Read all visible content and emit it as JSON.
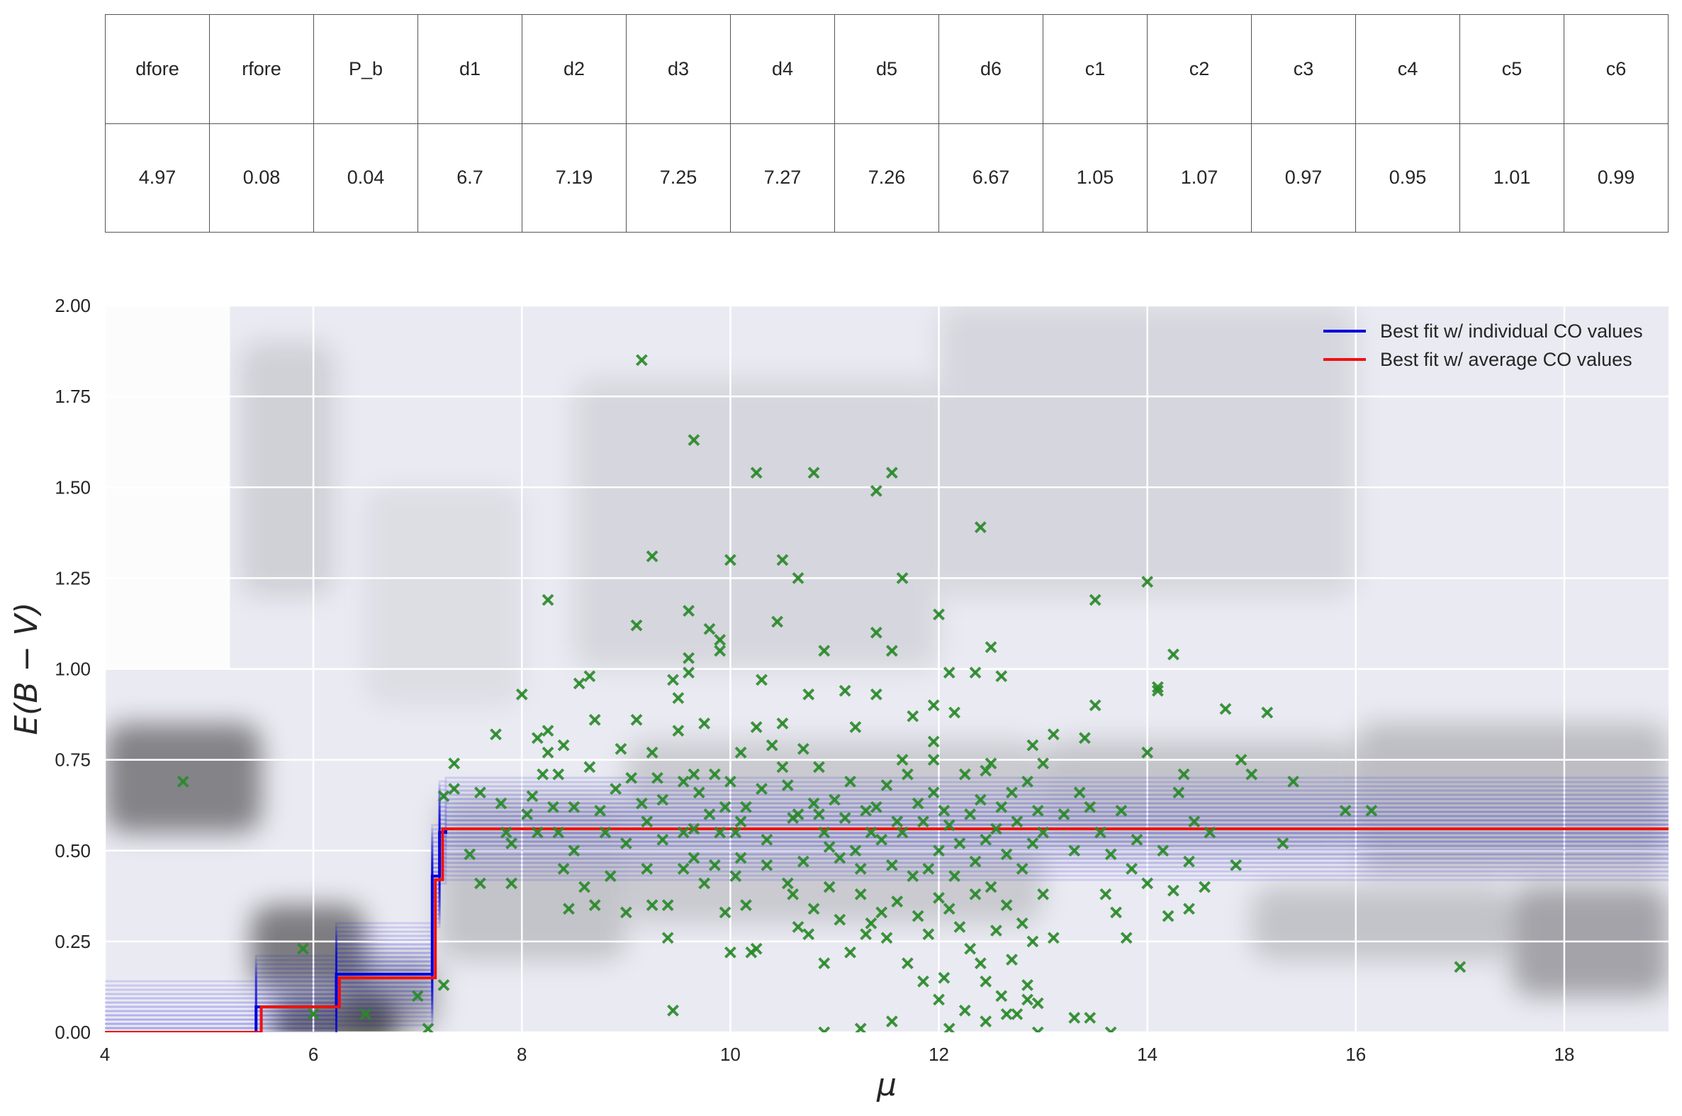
{
  "table": {
    "headers": [
      "dfore",
      "rfore",
      "P_b",
      "d1",
      "d2",
      "d3",
      "d4",
      "d5",
      "d6",
      "c1",
      "c2",
      "c3",
      "c4",
      "c5",
      "c6"
    ],
    "values": [
      "4.97",
      "0.08",
      "0.04",
      "6.7",
      "7.19",
      "7.25",
      "7.27",
      "7.26",
      "6.67",
      "1.05",
      "1.07",
      "0.97",
      "0.95",
      "1.01",
      "0.99"
    ]
  },
  "chart_data": {
    "type": "line",
    "xlabel": "μ",
    "ylabel": "E(B − V)",
    "xlim": [
      4,
      19
    ],
    "ylim": [
      0,
      2
    ],
    "xticks": [
      4,
      6,
      8,
      10,
      12,
      14,
      16,
      18
    ],
    "yticks": [
      "0.00",
      "0.25",
      "0.50",
      "0.75",
      "1.00",
      "1.25",
      "1.50",
      "1.75",
      "2.00"
    ],
    "grid": true,
    "legend_position": "top-right",
    "colors": {
      "individual": "#0000dd",
      "average": "#ee1111",
      "stars": "#2a8a2a",
      "background": "#eaeaf2",
      "grid": "#ffffff"
    },
    "series": [
      {
        "name": "Best fit w/ individual CO values",
        "x": [
          4,
          5.45,
          5.45,
          6.22,
          6.22,
          7.14,
          7.14,
          7.21,
          7.21,
          7.27,
          7.27,
          19
        ],
        "y": [
          0.0,
          0.0,
          0.07,
          0.07,
          0.16,
          0.16,
          0.43,
          0.43,
          0.55,
          0.55,
          0.56,
          0.56
        ]
      },
      {
        "name": "Best fit w/ average CO values",
        "x": [
          4,
          5.5,
          5.5,
          6.25,
          6.25,
          7.17,
          7.17,
          7.24,
          7.24,
          7.28,
          7.28,
          19
        ],
        "y": [
          0.0,
          0.0,
          0.07,
          0.07,
          0.15,
          0.15,
          0.42,
          0.42,
          0.56,
          0.56,
          0.56,
          0.56
        ]
      }
    ],
    "stars": [
      [
        4.75,
        0.69
      ],
      [
        5.9,
        0.23
      ],
      [
        6.0,
        0.05
      ],
      [
        6.5,
        0.05
      ],
      [
        7.0,
        0.1
      ],
      [
        7.1,
        0.01
      ],
      [
        7.25,
        0.13
      ],
      [
        7.25,
        0.65
      ],
      [
        7.35,
        0.74
      ],
      [
        7.35,
        0.67
      ],
      [
        7.5,
        0.49
      ],
      [
        7.6,
        0.66
      ],
      [
        7.6,
        0.41
      ],
      [
        7.75,
        0.82
      ],
      [
        7.8,
        0.63
      ],
      [
        7.85,
        0.55
      ],
      [
        7.9,
        0.52
      ],
      [
        7.9,
        0.41
      ],
      [
        8.0,
        0.93
      ],
      [
        8.05,
        0.6
      ],
      [
        8.1,
        0.65
      ],
      [
        8.15,
        0.81
      ],
      [
        8.15,
        0.55
      ],
      [
        8.2,
        0.71
      ],
      [
        8.25,
        1.19
      ],
      [
        8.25,
        0.83
      ],
      [
        8.25,
        0.77
      ],
      [
        8.3,
        0.62
      ],
      [
        8.35,
        0.55
      ],
      [
        8.35,
        0.71
      ],
      [
        8.4,
        0.79
      ],
      [
        8.4,
        0.45
      ],
      [
        8.45,
        0.34
      ],
      [
        8.5,
        0.62
      ],
      [
        8.5,
        0.5
      ],
      [
        8.55,
        0.96
      ],
      [
        8.6,
        0.4
      ],
      [
        8.65,
        0.73
      ],
      [
        8.65,
        0.98
      ],
      [
        8.7,
        0.86
      ],
      [
        8.7,
        0.35
      ],
      [
        8.75,
        0.61
      ],
      [
        8.8,
        0.55
      ],
      [
        8.85,
        0.43
      ],
      [
        8.9,
        0.67
      ],
      [
        8.95,
        0.78
      ],
      [
        9.0,
        0.33
      ],
      [
        9.0,
        0.52
      ],
      [
        9.05,
        0.7
      ],
      [
        9.1,
        1.12
      ],
      [
        9.1,
        0.86
      ],
      [
        9.15,
        0.63
      ],
      [
        9.2,
        0.45
      ],
      [
        9.2,
        0.58
      ],
      [
        9.25,
        1.31
      ],
      [
        9.25,
        0.77
      ],
      [
        9.25,
        0.35
      ],
      [
        9.3,
        0.7
      ],
      [
        9.35,
        0.53
      ],
      [
        9.35,
        0.64
      ],
      [
        9.4,
        0.26
      ],
      [
        9.4,
        0.35
      ],
      [
        9.45,
        0.06
      ],
      [
        9.45,
        0.97
      ],
      [
        9.5,
        0.92
      ],
      [
        9.5,
        0.83
      ],
      [
        9.55,
        0.69
      ],
      [
        9.55,
        0.55
      ],
      [
        9.55,
        0.45
      ],
      [
        9.6,
        0.99
      ],
      [
        9.6,
        1.03
      ],
      [
        9.6,
        1.16
      ],
      [
        9.65,
        0.71
      ],
      [
        9.65,
        0.56
      ],
      [
        9.65,
        0.48
      ],
      [
        9.7,
        0.66
      ],
      [
        9.75,
        0.85
      ],
      [
        9.75,
        0.41
      ],
      [
        9.8,
        1.11
      ],
      [
        9.8,
        0.6
      ],
      [
        9.85,
        0.46
      ],
      [
        9.85,
        0.71
      ],
      [
        9.9,
        1.08
      ],
      [
        9.9,
        1.05
      ],
      [
        9.9,
        0.55
      ],
      [
        9.95,
        0.62
      ],
      [
        9.95,
        0.33
      ],
      [
        10.0,
        0.22
      ],
      [
        10.0,
        0.69
      ],
      [
        10.05,
        0.55
      ],
      [
        10.05,
        0.43
      ],
      [
        10.1,
        0.58
      ],
      [
        10.1,
        0.48
      ],
      [
        10.1,
        0.77
      ],
      [
        10.15,
        0.62
      ],
      [
        10.15,
        0.35
      ],
      [
        10.2,
        0.22
      ],
      [
        10.25,
        0.84
      ],
      [
        10.25,
        0.23
      ],
      [
        10.3,
        0.97
      ],
      [
        10.3,
        0.67
      ],
      [
        10.35,
        0.46
      ],
      [
        10.35,
        0.53
      ],
      [
        10.4,
        0.79
      ],
      [
        10.45,
        1.13
      ],
      [
        10.5,
        1.3
      ],
      [
        10.5,
        0.85
      ],
      [
        10.5,
        0.73
      ],
      [
        10.55,
        0.68
      ],
      [
        10.55,
        0.41
      ],
      [
        10.6,
        0.59
      ],
      [
        10.6,
        0.38
      ],
      [
        10.65,
        0.6
      ],
      [
        10.65,
        0.29
      ],
      [
        10.7,
        0.78
      ],
      [
        10.7,
        0.47
      ],
      [
        10.75,
        0.93
      ],
      [
        10.75,
        0.27
      ],
      [
        10.8,
        1.54
      ],
      [
        10.8,
        0.63
      ],
      [
        10.8,
        0.34
      ],
      [
        10.85,
        0.73
      ],
      [
        10.85,
        0.6
      ],
      [
        10.9,
        0.55
      ],
      [
        10.9,
        0.19
      ],
      [
        10.95,
        0.51
      ],
      [
        10.95,
        0.4
      ],
      [
        11.0,
        0.64
      ],
      [
        11.05,
        0.48
      ],
      [
        11.05,
        0.31
      ],
      [
        11.1,
        0.94
      ],
      [
        11.1,
        0.59
      ],
      [
        11.15,
        0.69
      ],
      [
        11.15,
        0.22
      ],
      [
        11.2,
        0.84
      ],
      [
        11.2,
        0.5
      ],
      [
        11.25,
        0.45
      ],
      [
        11.25,
        0.38
      ],
      [
        11.3,
        0.27
      ],
      [
        11.3,
        0.61
      ],
      [
        11.35,
        0.55
      ],
      [
        11.35,
        0.3
      ],
      [
        11.4,
        0.93
      ],
      [
        11.4,
        0.62
      ],
      [
        11.45,
        0.53
      ],
      [
        11.45,
        0.33
      ],
      [
        11.5,
        0.68
      ],
      [
        11.5,
        0.26
      ],
      [
        11.55,
        1.05
      ],
      [
        11.55,
        0.46
      ],
      [
        11.6,
        0.58
      ],
      [
        11.6,
        0.36
      ],
      [
        11.65,
        1.25
      ],
      [
        11.65,
        0.55
      ],
      [
        11.7,
        0.71
      ],
      [
        11.7,
        0.19
      ],
      [
        11.75,
        0.87
      ],
      [
        11.75,
        0.43
      ],
      [
        11.8,
        0.63
      ],
      [
        11.8,
        0.32
      ],
      [
        11.85,
        0.58
      ],
      [
        11.85,
        0.14
      ],
      [
        11.9,
        0.45
      ],
      [
        11.9,
        0.27
      ],
      [
        11.95,
        0.8
      ],
      [
        11.95,
        0.66
      ],
      [
        12.0,
        0.5
      ],
      [
        12.0,
        0.37
      ],
      [
        12.05,
        0.61
      ],
      [
        12.05,
        0.15
      ],
      [
        12.1,
        0.57
      ],
      [
        12.1,
        0.34
      ],
      [
        12.15,
        0.43
      ],
      [
        12.15,
        0.88
      ],
      [
        12.2,
        0.52
      ],
      [
        12.2,
        0.29
      ],
      [
        12.25,
        0.06
      ],
      [
        12.25,
        0.71
      ],
      [
        12.3,
        0.6
      ],
      [
        12.3,
        0.23
      ],
      [
        12.35,
        0.47
      ],
      [
        12.35,
        0.38
      ],
      [
        12.4,
        0.64
      ],
      [
        12.4,
        0.19
      ],
      [
        12.45,
        0.53
      ],
      [
        12.45,
        0.14
      ],
      [
        12.5,
        0.74
      ],
      [
        12.5,
        0.4
      ],
      [
        12.55,
        0.56
      ],
      [
        12.55,
        0.28
      ],
      [
        12.6,
        0.62
      ],
      [
        12.6,
        0.1
      ],
      [
        12.65,
        0.49
      ],
      [
        12.65,
        0.35
      ],
      [
        12.7,
        0.66
      ],
      [
        12.7,
        0.2
      ],
      [
        12.75,
        0.58
      ],
      [
        12.75,
        0.05
      ],
      [
        12.8,
        0.45
      ],
      [
        12.8,
        0.3
      ],
      [
        12.85,
        0.69
      ],
      [
        12.85,
        0.13
      ],
      [
        12.9,
        0.52
      ],
      [
        12.9,
        0.25
      ],
      [
        12.95,
        0.61
      ],
      [
        12.95,
        0.08
      ],
      [
        13.0,
        0.55
      ],
      [
        13.0,
        0.38
      ],
      [
        9.15,
        1.85
      ],
      [
        9.65,
        1.63
      ],
      [
        10.25,
        1.54
      ],
      [
        11.4,
        1.49
      ],
      [
        11.55,
        1.54
      ],
      [
        12.4,
        1.39
      ],
      [
        10.0,
        1.3
      ],
      [
        10.65,
        1.25
      ],
      [
        12.0,
        1.15
      ],
      [
        11.4,
        1.1
      ],
      [
        10.9,
        1.05
      ],
      [
        12.1,
        0.99
      ],
      [
        12.35,
        0.99
      ],
      [
        12.5,
        1.06
      ],
      [
        12.6,
        0.98
      ],
      [
        11.95,
        0.9
      ],
      [
        11.65,
        0.75
      ],
      [
        11.95,
        0.75
      ],
      [
        12.45,
        0.72
      ],
      [
        12.9,
        0.79
      ],
      [
        13.0,
        0.74
      ],
      [
        13.1,
        0.82
      ],
      [
        13.2,
        0.6
      ],
      [
        13.3,
        0.5
      ],
      [
        13.35,
        0.66
      ],
      [
        13.4,
        0.81
      ],
      [
        13.45,
        0.62
      ],
      [
        13.5,
        0.9
      ],
      [
        13.5,
        1.19
      ],
      [
        13.55,
        0.55
      ],
      [
        13.6,
        0.38
      ],
      [
        13.65,
        0.49
      ],
      [
        13.7,
        0.33
      ],
      [
        13.75,
        0.61
      ],
      [
        13.8,
        0.26
      ],
      [
        13.85,
        0.45
      ],
      [
        13.9,
        0.53
      ],
      [
        14.0,
        0.77
      ],
      [
        14.0,
        1.24
      ],
      [
        14.0,
        0.41
      ],
      [
        14.1,
        0.95
      ],
      [
        14.1,
        0.94
      ],
      [
        14.15,
        0.5
      ],
      [
        14.2,
        0.32
      ],
      [
        14.25,
        0.39
      ],
      [
        14.25,
        1.04
      ],
      [
        14.3,
        0.66
      ],
      [
        14.35,
        0.71
      ],
      [
        14.4,
        0.47
      ],
      [
        14.4,
        0.34
      ],
      [
        14.45,
        0.58
      ],
      [
        14.55,
        0.4
      ],
      [
        14.6,
        0.55
      ],
      [
        14.75,
        0.89
      ],
      [
        14.85,
        0.46
      ],
      [
        14.9,
        0.75
      ],
      [
        15.0,
        0.71
      ],
      [
        15.15,
        0.88
      ],
      [
        15.3,
        0.52
      ],
      [
        15.4,
        0.69
      ],
      [
        15.9,
        0.61
      ],
      [
        16.15,
        0.61
      ],
      [
        17.0,
        0.18
      ],
      [
        13.1,
        0.26
      ],
      [
        13.3,
        0.04
      ],
      [
        13.45,
        0.04
      ],
      [
        13.65,
        0.0
      ],
      [
        12.95,
        0.0
      ],
      [
        12.1,
        0.01
      ],
      [
        11.25,
        0.01
      ],
      [
        11.55,
        0.03
      ],
      [
        10.9,
        0.0
      ],
      [
        12.45,
        0.03
      ],
      [
        12.0,
        0.09
      ],
      [
        12.65,
        0.05
      ],
      [
        12.85,
        0.09
      ]
    ]
  }
}
